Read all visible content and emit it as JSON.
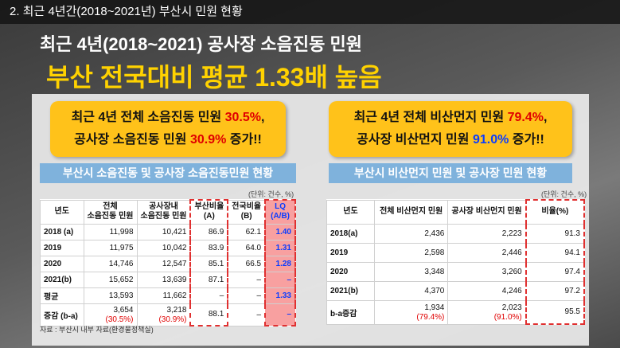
{
  "header": {
    "title": "2. 최근 4년간(2018~2021년) 부산시 민원 현황"
  },
  "headline": {
    "subtitle": "최근 4년(2018~2021) 공사장 소음진동 민원",
    "title": "부산 전국대비 평균 1.33배 높음"
  },
  "noise": {
    "callout": [
      [
        "최근 4년 전체 소음진동 민원 ",
        "30.5%",
        ","
      ],
      [
        "공사장 소음진동 민원 ",
        "30.9%",
        " 증가!!"
      ]
    ],
    "section_title": "부산시 소음진동 및 공사장 소음진동민원 현황",
    "unit": "(단위: 건수, %)",
    "table": {
      "header": [
        [
          "년도"
        ],
        [
          "전체",
          "소음진동 민원"
        ],
        [
          "공사장내",
          "소음진동 민원"
        ],
        [
          "부산비율",
          "(A)"
        ],
        [
          "전국비율",
          "(B)"
        ],
        [
          "LQ",
          "(A/B)"
        ]
      ],
      "rows": [
        [
          "2018 (a)",
          "11,998",
          "10,421",
          "86.9",
          "62.1",
          "1.40"
        ],
        [
          "2019",
          "11,975",
          "10,042",
          "83.9",
          "64.0",
          "1.31"
        ],
        [
          "2020",
          "14,746",
          "12,547",
          "85.1",
          "66.5",
          "1.28"
        ],
        [
          "2021(b)",
          "15,652",
          "13,639",
          "87.1",
          "–",
          "–"
        ],
        [
          "평균",
          "13,593",
          "11,662",
          "–",
          "–",
          "1.33"
        ],
        [
          "증감 (b-a)",
          [
            "3,654",
            "(30.5%)"
          ],
          [
            "3,218",
            "(30.9%)"
          ],
          "88.1",
          "–",
          "–"
        ]
      ]
    },
    "source": "자료 : 부산시 내부 자료(환경물정책실)"
  },
  "dust": {
    "callout": [
      [
        "최근 4년 전체 비산먼지 민원 ",
        "79.4%",
        ","
      ],
      [
        "공사장 비산먼지 민원 ",
        "91.0%",
        " 증가!!"
      ]
    ],
    "section_title": "부산시 비산먼지 민원 및 공사장 민원 현황",
    "unit": "(단위: 건수, %)",
    "table": {
      "header": [
        [
          "년도"
        ],
        [
          "전체 비산먼지 민원"
        ],
        [
          "공사장 비산먼지 민원"
        ],
        [
          "비율(%)"
        ]
      ],
      "rows": [
        [
          "2018(a)",
          "2,436",
          "2,223",
          "91.3"
        ],
        [
          "2019",
          "2,598",
          "2,446",
          "94.1"
        ],
        [
          "2020",
          "3,348",
          "3,260",
          "97.4"
        ],
        [
          "2021(b)",
          "4,370",
          "4,246",
          "97.2"
        ],
        [
          "b-a증감",
          [
            "1,934",
            "(79.4%)"
          ],
          [
            "2,023",
            "(91.0%)"
          ],
          "95.5"
        ]
      ]
    }
  }
}
